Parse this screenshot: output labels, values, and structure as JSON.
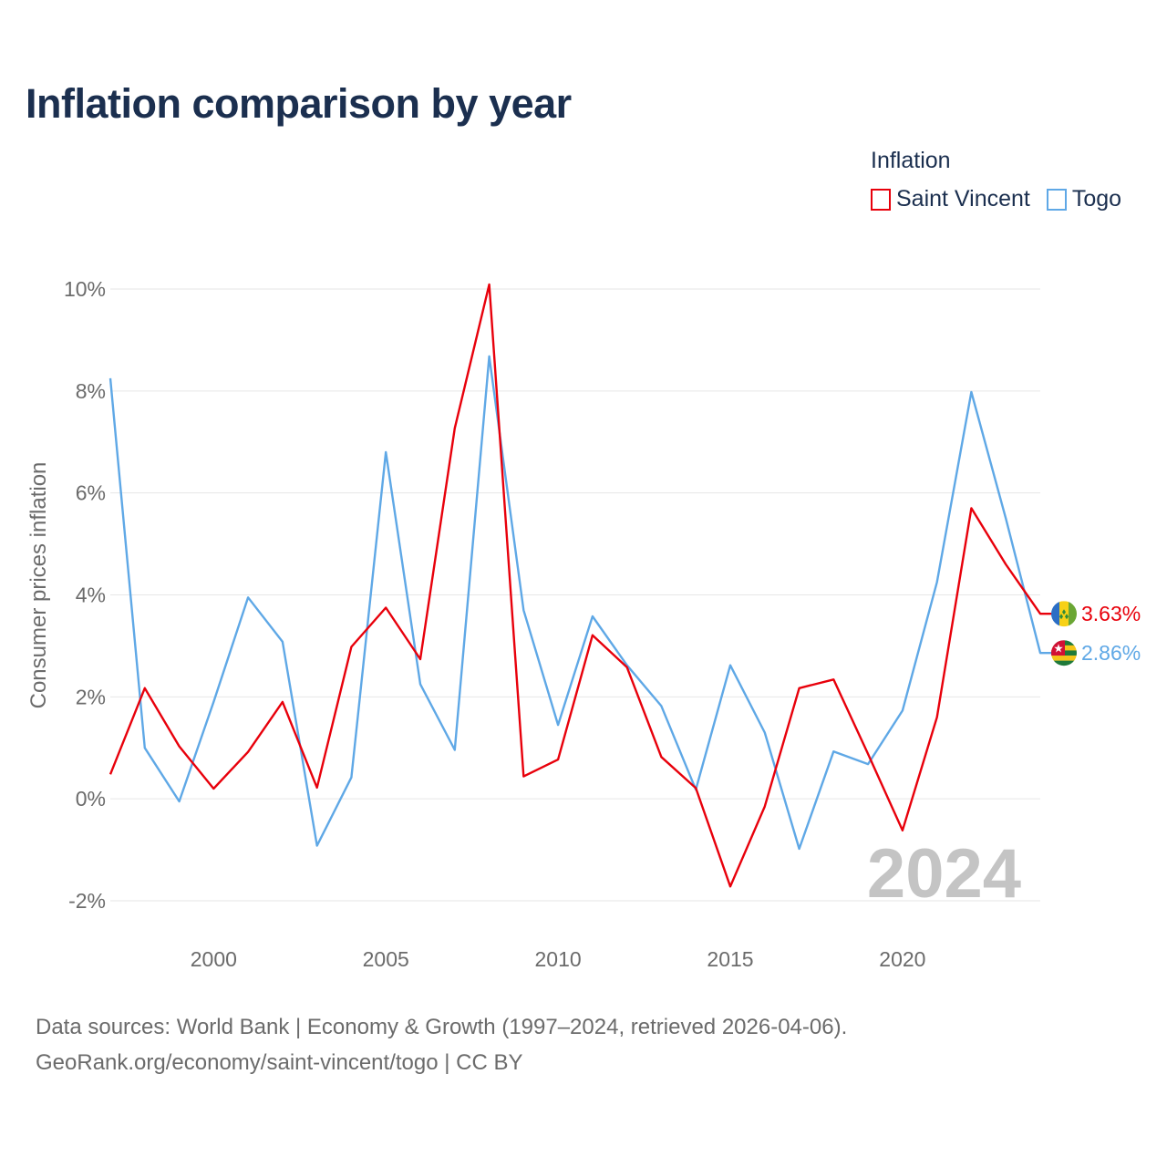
{
  "title": "Inflation comparison by year",
  "legend": {
    "title": "Inflation",
    "items": [
      {
        "label": "Saint Vincent",
        "color": "#e8000b"
      },
      {
        "label": "Togo",
        "color": "#5fa8e6"
      }
    ]
  },
  "footer": {
    "line1": "Data sources: World Bank | Economy & Growth (1997–2024, retrieved 2026-04-06).",
    "line2": "GeoRank.org/economy/saint-vincent/togo | CC BY"
  },
  "chart_data": {
    "type": "line",
    "ylabel": "Consumer prices inflation",
    "xlabel": "",
    "ylim": [
      -2,
      10
    ],
    "xlim": [
      1997,
      2024
    ],
    "yticks": [
      -2,
      0,
      2,
      4,
      6,
      8,
      10
    ],
    "ytick_labels": [
      "-2%",
      "0%",
      "2%",
      "4%",
      "6%",
      "8%",
      "10%"
    ],
    "xticks": [
      2000,
      2005,
      2010,
      2015,
      2020
    ],
    "xtick_labels": [
      "2000",
      "2005",
      "2010",
      "2015",
      "2020"
    ],
    "watermark": "2024",
    "x": [
      1997,
      1998,
      1999,
      2000,
      2001,
      2002,
      2003,
      2004,
      2005,
      2006,
      2007,
      2008,
      2009,
      2010,
      2011,
      2012,
      2013,
      2014,
      2015,
      2016,
      2017,
      2018,
      2019,
      2020,
      2021,
      2022,
      2023,
      2024
    ],
    "series": [
      {
        "name": "Saint Vincent",
        "color": "#e8000b",
        "end_label": "3.63%",
        "values": [
          0.48,
          2.17,
          1.03,
          0.2,
          0.92,
          1.9,
          0.22,
          2.98,
          3.75,
          2.74,
          7.27,
          10.09,
          0.44,
          0.77,
          3.21,
          2.58,
          0.82,
          0.21,
          -1.72,
          -0.15,
          2.17,
          2.34,
          0.88,
          -0.62,
          1.6,
          5.7,
          4.6,
          3.63
        ]
      },
      {
        "name": "Togo",
        "color": "#5fa8e6",
        "end_label": "2.86%",
        "values": [
          8.25,
          1.0,
          -0.05,
          1.9,
          3.95,
          3.08,
          -0.92,
          0.42,
          6.8,
          2.25,
          0.96,
          8.68,
          3.7,
          1.45,
          3.58,
          2.62,
          1.82,
          0.18,
          2.62,
          1.3,
          -0.98,
          0.93,
          0.68,
          1.73,
          4.25,
          7.98,
          5.5,
          2.86
        ]
      }
    ]
  }
}
